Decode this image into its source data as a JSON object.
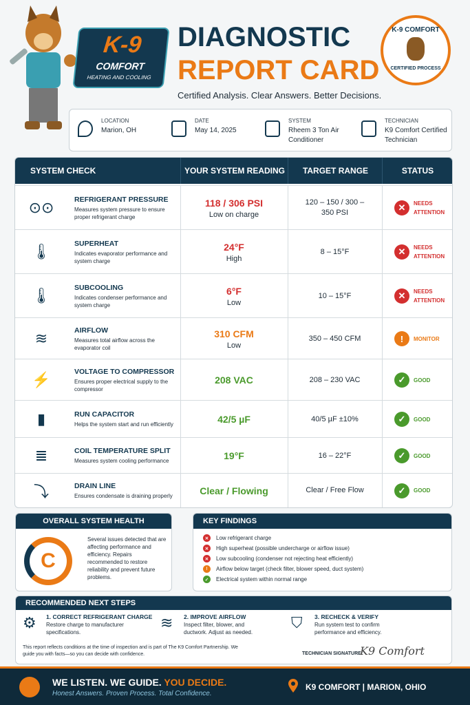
{
  "header": {
    "brand": "K-9",
    "brand_sub": "COMFORT",
    "brand_tag": "HEATING AND COOLING",
    "title_line1": "DIAGNOSTIC",
    "title_line2": "REPORT CARD",
    "tagline": "Certified Analysis. Clear Answers. Better Decisions.",
    "badge_top": "K-9 COMFORT",
    "badge_bottom": "CERTIFIED PROCESS"
  },
  "info": [
    {
      "label": "LOCATION",
      "value": "Marion, OH"
    },
    {
      "label": "DATE",
      "value": "May 14, 2025"
    },
    {
      "label": "SYSTEM",
      "value": "Rheem 3 Ton Air Conditioner"
    },
    {
      "label": "TECHNICIAN",
      "value": "K9 Comfort Certified Technician"
    }
  ],
  "table": {
    "headers": [
      "SYSTEM CHECK",
      "YOUR SYSTEM READING",
      "TARGET RANGE",
      "STATUS"
    ],
    "rows": [
      {
        "name": "REFRIGERANT PRESSURE",
        "desc": "Measures system pressure to ensure proper refrigerant charge",
        "reading": "118 / 306 PSI",
        "note": "Low on charge",
        "target": "120 – 150 / 300 – 350 PSI",
        "status": "NEEDS ATTENTION",
        "icon": "cross",
        "color": "#d32f2f"
      },
      {
        "name": "SUPERHEAT",
        "desc": "Indicates evaporator performance and system charge",
        "reading": "24°F",
        "note": "High",
        "target": "8 – 15°F",
        "status": "NEEDS ATTENTION",
        "icon": "cross",
        "color": "#d32f2f"
      },
      {
        "name": "SUBCOOLING",
        "desc": "Indicates condenser performance and system charge",
        "reading": "6°F",
        "note": "Low",
        "target": "10 – 15°F",
        "status": "NEEDS ATTENTION",
        "icon": "cross",
        "color": "#d32f2f"
      },
      {
        "name": "AIRFLOW",
        "desc": "Measures total airflow across the evaporator coil",
        "reading": "310 CFM",
        "note": "Low",
        "target": "350 – 450 CFM",
        "status": "MONITOR",
        "icon": "exclamation",
        "color": "#ea7a16"
      },
      {
        "name": "VOLTAGE TO COMPRESSOR",
        "desc": "Ensures proper electrical supply to the compressor",
        "reading": "208 VAC",
        "note": null,
        "target": "208 – 230 VAC",
        "status": "GOOD",
        "icon": "check",
        "color": "#4a9a2c"
      },
      {
        "name": "RUN CAPACITOR",
        "desc": "Helps the system start and run efficiently",
        "reading": "42/5 µF",
        "note": null,
        "target": "40/5 µF ±10%",
        "status": "GOOD",
        "icon": "check",
        "color": "#4a9a2c"
      },
      {
        "name": "COIL TEMPERATURE SPLIT",
        "desc": "Measures system cooling performance",
        "reading": "19°F",
        "note": null,
        "target": "16 – 22°F",
        "status": "GOOD",
        "icon": "check",
        "color": "#4a9a2c"
      },
      {
        "name": "DRAIN LINE",
        "desc": "Ensures condensate is draining properly",
        "reading": "Clear / Flowing",
        "note": null,
        "target": "Clear / Free Flow",
        "status": "GOOD",
        "icon": "check",
        "color": "#4a9a2c"
      }
    ]
  },
  "health": {
    "title": "OVERALL SYSTEM HEALTH",
    "grade": "C",
    "text": "Several issues detected that are affecting performance and efficiency. Repairs recommended to restore reliability and prevent future problems."
  },
  "findings": {
    "title": "KEY FINDINGS",
    "items": [
      {
        "text": "Low refrigerant charge",
        "icon": "cross",
        "color": "#d32f2f"
      },
      {
        "text": "High superheat (possible undercharge or airflow issue)",
        "icon": "cross",
        "color": "#d32f2f"
      },
      {
        "text": "Low subcooling (condenser not rejecting heat efficiently)",
        "icon": "cross",
        "color": "#d32f2f"
      },
      {
        "text": "Airflow below target (check filter, blower speed, duct system)",
        "icon": "exclamation",
        "color": "#ea7a16"
      },
      {
        "text": "Electrical system within normal range",
        "icon": "check",
        "color": "#4a9a2c"
      }
    ]
  },
  "steps": {
    "title": "RECOMMENDED NEXT STEPS",
    "items": [
      {
        "title": "1. CORRECT REFRIGERANT CHARGE",
        "text": "Restore charge to manufacturer specifications."
      },
      {
        "title": "2. IMPROVE AIRFLOW",
        "text": "Inspect filter, blower, and ductwork. Adjust as needed."
      },
      {
        "title": "3. RECHECK & VERIFY",
        "text": "Run system test to confirm performance and efficiency."
      }
    ]
  },
  "note": "This report reflects conditions at the time of inspection and is part of The K9 Comfort Partnership. We guide you with facts—so you can decide with confidence.",
  "signature": {
    "label": "TECHNICIAN SIGNATURE:",
    "name": "K9 Comfort"
  },
  "footer": {
    "slogan": "WE LISTEN. WE GUIDE.",
    "slogan_accent": "YOU DECIDE.",
    "sub": "Honest Answers. Proven Process. Total Confidence.",
    "company": "K9 COMFORT | MARION, OHIO"
  }
}
